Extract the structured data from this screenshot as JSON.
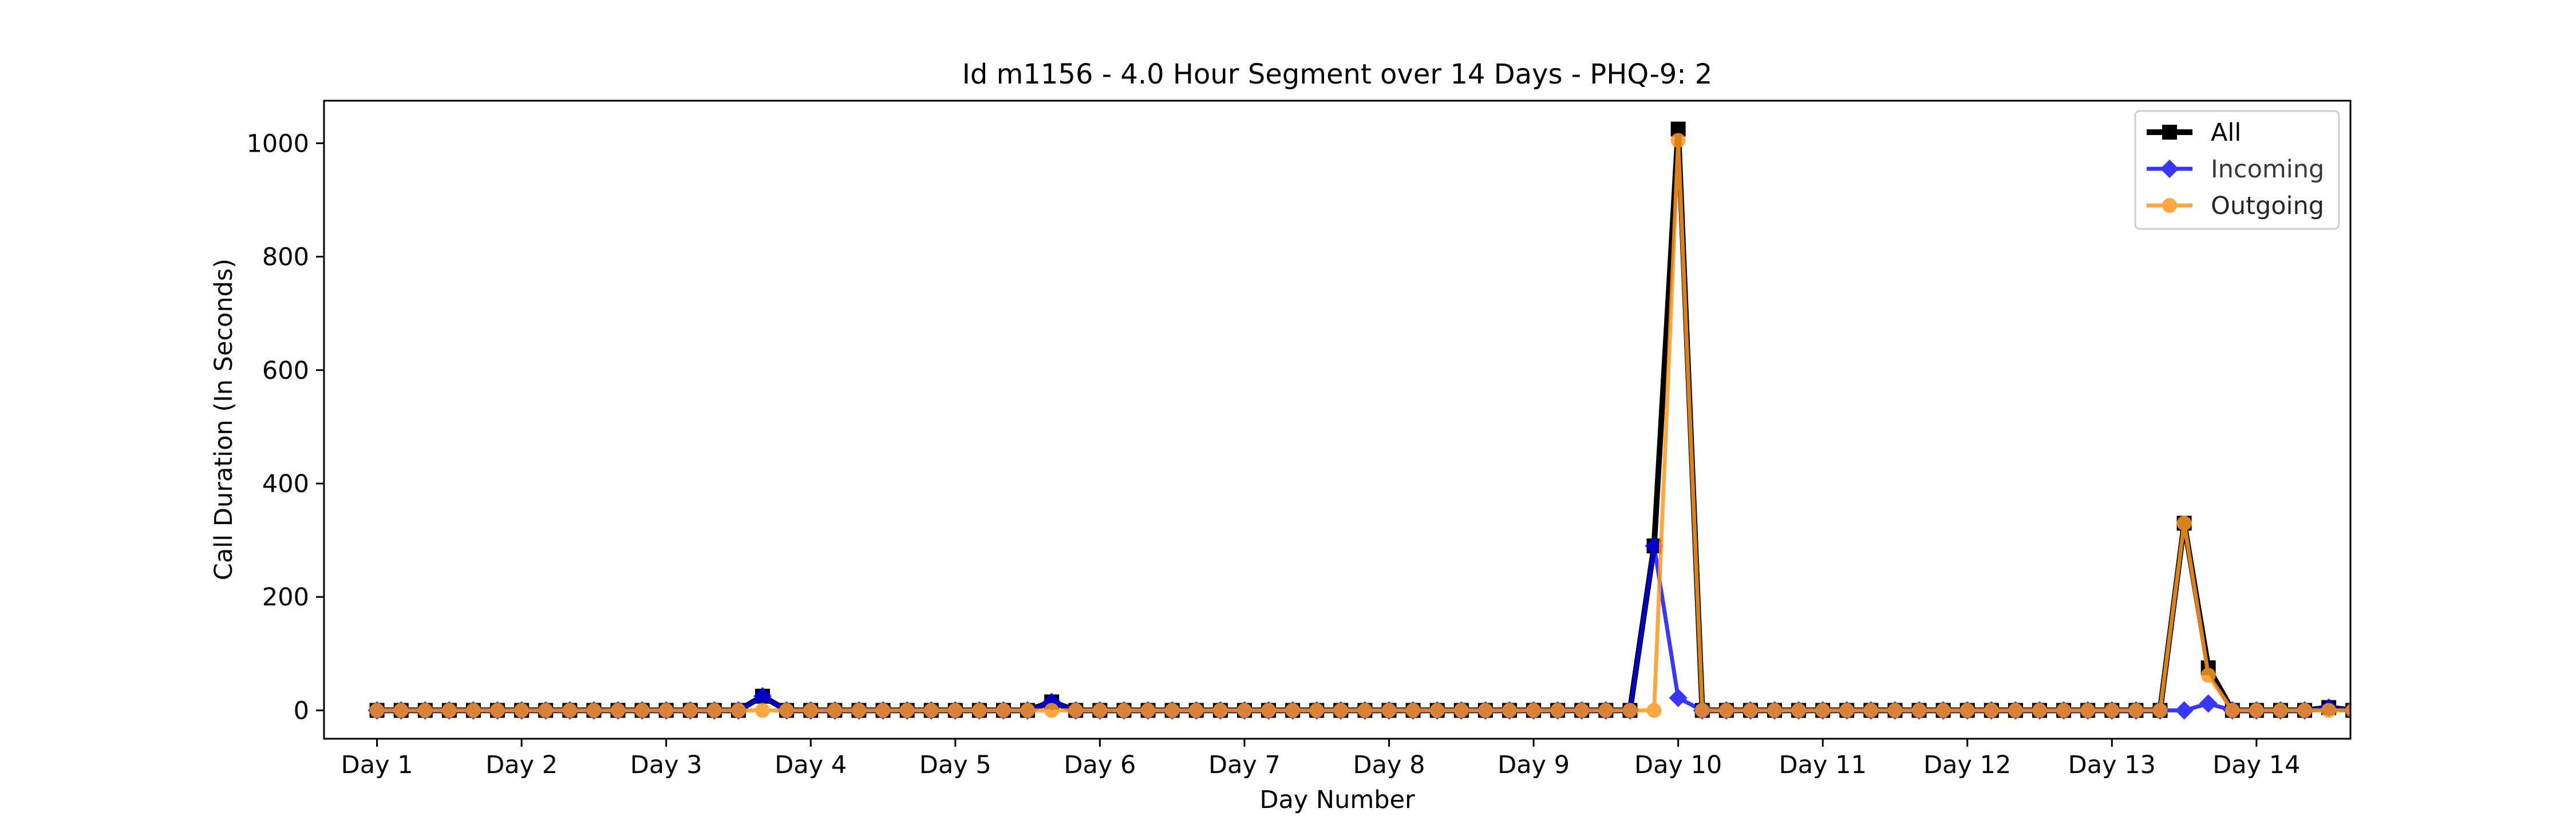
{
  "chart_data": {
    "type": "line",
    "title": "Id m1156 - 4.0 Hour Segment over 14 Days - PHQ-9: 2",
    "xlabel": "Day Number",
    "ylabel": "Call Duration (In Seconds)",
    "xticks": [
      "Day 1",
      "Day 2",
      "Day 3",
      "Day 4",
      "Day 5",
      "Day 6",
      "Day 7",
      "Day 8",
      "Day 9",
      "Day 10",
      "Day 11",
      "Day 12",
      "Day 13",
      "Day 14"
    ],
    "yticks": [
      0,
      200,
      400,
      600,
      800,
      1000
    ],
    "ylim": [
      -50,
      1075
    ],
    "xlim": [
      -2.2,
      81.9
    ],
    "segments_per_day": 6,
    "grid": false,
    "legend_position": "top-right",
    "series": [
      {
        "name": "All",
        "color": "#000000",
        "marker": "square",
        "values": [
          0,
          0,
          0,
          0,
          0,
          0,
          0,
          0,
          0,
          0,
          0,
          0,
          0,
          0,
          0,
          0,
          25,
          0,
          0,
          0,
          0,
          0,
          0,
          0,
          0,
          0,
          0,
          0,
          15,
          0,
          0,
          0,
          0,
          0,
          0,
          0,
          0,
          0,
          0,
          0,
          0,
          0,
          0,
          0,
          0,
          0,
          0,
          0,
          0,
          0,
          0,
          0,
          0,
          290,
          1025,
          0,
          0,
          0,
          0,
          0,
          0,
          0,
          0,
          0,
          0,
          0,
          0,
          0,
          0,
          0,
          0,
          0,
          0,
          0,
          0,
          330,
          75,
          0,
          0,
          0,
          0,
          5,
          0,
          0
        ]
      },
      {
        "name": "Incoming",
        "color": "#0000ff",
        "marker": "diamond",
        "values": [
          0,
          0,
          0,
          0,
          0,
          0,
          0,
          0,
          0,
          0,
          0,
          0,
          0,
          0,
          0,
          0,
          25,
          0,
          0,
          0,
          0,
          0,
          0,
          0,
          0,
          0,
          0,
          0,
          15,
          0,
          0,
          0,
          0,
          0,
          0,
          0,
          0,
          0,
          0,
          0,
          0,
          0,
          0,
          0,
          0,
          0,
          0,
          0,
          0,
          0,
          0,
          0,
          0,
          290,
          22,
          0,
          0,
          0,
          0,
          0,
          0,
          0,
          0,
          0,
          0,
          0,
          0,
          0,
          0,
          0,
          0,
          0,
          0,
          0,
          0,
          0,
          12,
          0,
          0,
          0,
          0,
          5,
          0,
          0
        ]
      },
      {
        "name": "Outgoing",
        "color": "#ff9922",
        "marker": "circle",
        "values": [
          0,
          0,
          0,
          0,
          0,
          0,
          0,
          0,
          0,
          0,
          0,
          0,
          0,
          0,
          0,
          0,
          0,
          0,
          0,
          0,
          0,
          0,
          0,
          0,
          0,
          0,
          0,
          0,
          0,
          0,
          0,
          0,
          0,
          0,
          0,
          0,
          0,
          0,
          0,
          0,
          0,
          0,
          0,
          0,
          0,
          0,
          0,
          0,
          0,
          0,
          0,
          0,
          0,
          0,
          1005,
          0,
          0,
          0,
          0,
          0,
          0,
          0,
          0,
          0,
          0,
          0,
          0,
          0,
          0,
          0,
          0,
          0,
          0,
          0,
          0,
          330,
          62,
          0,
          0,
          0,
          0,
          0,
          0,
          0
        ]
      }
    ]
  }
}
